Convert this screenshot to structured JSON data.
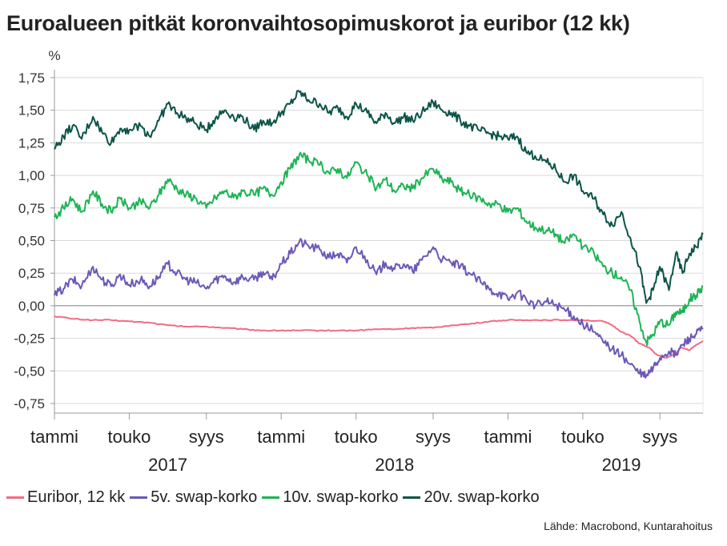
{
  "chart_data": {
    "type": "line",
    "title": "Euroalueen pitkät koronvaihtosopimuskorot ja euribor (12 kk)",
    "ylabel": "%",
    "ylim": [
      -0.75,
      1.75
    ],
    "yticks": [
      1.75,
      1.5,
      1.25,
      1.0,
      0.75,
      0.5,
      0.25,
      0.0,
      -0.25,
      -0.5,
      -0.75
    ],
    "ytick_labels": [
      "1,75",
      "1,50",
      "1,25",
      "1,00",
      "0,75",
      "0,50",
      "0,25",
      "0,00",
      "-0,25",
      "-0,50",
      "-0,75"
    ],
    "xlim": [
      2017.0,
      2019.86
    ],
    "xticks": [
      {
        "x": 2017.0,
        "label": "tammi"
      },
      {
        "x": 2017.33,
        "label": "touko"
      },
      {
        "x": 2017.67,
        "label": "syys"
      },
      {
        "x": 2018.0,
        "label": "tammi"
      },
      {
        "x": 2018.33,
        "label": "touko"
      },
      {
        "x": 2018.67,
        "label": "syys"
      },
      {
        "x": 2019.0,
        "label": "tammi"
      },
      {
        "x": 2019.33,
        "label": "touko"
      },
      {
        "x": 2019.67,
        "label": "syys"
      }
    ],
    "year_labels": [
      {
        "x": 2017.5,
        "label": "2017"
      },
      {
        "x": 2018.5,
        "label": "2018"
      },
      {
        "x": 2019.5,
        "label": "2019"
      }
    ],
    "grid": true,
    "legend_position": "bottom-left",
    "series": [
      {
        "name": "Euribor, 12 kk",
        "color": "#f06c84",
        "points": [
          [
            2017.0,
            -0.08
          ],
          [
            2017.08,
            -0.1
          ],
          [
            2017.17,
            -0.11
          ],
          [
            2017.25,
            -0.11
          ],
          [
            2017.33,
            -0.12
          ],
          [
            2017.42,
            -0.13
          ],
          [
            2017.5,
            -0.15
          ],
          [
            2017.58,
            -0.16
          ],
          [
            2017.67,
            -0.16
          ],
          [
            2017.75,
            -0.17
          ],
          [
            2017.83,
            -0.18
          ],
          [
            2017.92,
            -0.19
          ],
          [
            2018.0,
            -0.19
          ],
          [
            2018.08,
            -0.19
          ],
          [
            2018.17,
            -0.19
          ],
          [
            2018.25,
            -0.19
          ],
          [
            2018.33,
            -0.19
          ],
          [
            2018.42,
            -0.18
          ],
          [
            2018.5,
            -0.18
          ],
          [
            2018.58,
            -0.17
          ],
          [
            2018.67,
            -0.17
          ],
          [
            2018.75,
            -0.15
          ],
          [
            2018.83,
            -0.14
          ],
          [
            2018.92,
            -0.12
          ],
          [
            2019.0,
            -0.11
          ],
          [
            2019.08,
            -0.11
          ],
          [
            2019.17,
            -0.11
          ],
          [
            2019.25,
            -0.11
          ],
          [
            2019.33,
            -0.11
          ],
          [
            2019.42,
            -0.12
          ],
          [
            2019.46,
            -0.15
          ],
          [
            2019.5,
            -0.2
          ],
          [
            2019.54,
            -0.23
          ],
          [
            2019.58,
            -0.29
          ],
          [
            2019.62,
            -0.32
          ],
          [
            2019.66,
            -0.38
          ],
          [
            2019.7,
            -0.4
          ],
          [
            2019.74,
            -0.37
          ],
          [
            2019.76,
            -0.32
          ],
          [
            2019.8,
            -0.34
          ],
          [
            2019.83,
            -0.3
          ],
          [
            2019.86,
            -0.27
          ]
        ]
      },
      {
        "name": "5v. swap-korko",
        "color": "#6b58b8",
        "points": [
          [
            2017.0,
            0.08
          ],
          [
            2017.04,
            0.13
          ],
          [
            2017.08,
            0.2
          ],
          [
            2017.12,
            0.15
          ],
          [
            2017.17,
            0.3
          ],
          [
            2017.21,
            0.2
          ],
          [
            2017.25,
            0.15
          ],
          [
            2017.29,
            0.24
          ],
          [
            2017.33,
            0.16
          ],
          [
            2017.38,
            0.2
          ],
          [
            2017.42,
            0.15
          ],
          [
            2017.46,
            0.22
          ],
          [
            2017.5,
            0.32
          ],
          [
            2017.54,
            0.25
          ],
          [
            2017.58,
            0.2
          ],
          [
            2017.62,
            0.18
          ],
          [
            2017.67,
            0.13
          ],
          [
            2017.71,
            0.2
          ],
          [
            2017.75,
            0.23
          ],
          [
            2017.79,
            0.18
          ],
          [
            2017.83,
            0.22
          ],
          [
            2017.88,
            0.2
          ],
          [
            2017.92,
            0.26
          ],
          [
            2017.96,
            0.2
          ],
          [
            2018.0,
            0.32
          ],
          [
            2018.04,
            0.4
          ],
          [
            2018.08,
            0.49
          ],
          [
            2018.12,
            0.46
          ],
          [
            2018.17,
            0.43
          ],
          [
            2018.21,
            0.37
          ],
          [
            2018.25,
            0.4
          ],
          [
            2018.29,
            0.33
          ],
          [
            2018.33,
            0.45
          ],
          [
            2018.38,
            0.35
          ],
          [
            2018.42,
            0.24
          ],
          [
            2018.46,
            0.33
          ],
          [
            2018.5,
            0.28
          ],
          [
            2018.54,
            0.32
          ],
          [
            2018.58,
            0.26
          ],
          [
            2018.62,
            0.35
          ],
          [
            2018.67,
            0.45
          ],
          [
            2018.71,
            0.35
          ],
          [
            2018.75,
            0.33
          ],
          [
            2018.79,
            0.3
          ],
          [
            2018.83,
            0.25
          ],
          [
            2018.88,
            0.18
          ],
          [
            2018.92,
            0.12
          ],
          [
            2018.96,
            0.1
          ],
          [
            2019.0,
            0.05
          ],
          [
            2019.04,
            0.1
          ],
          [
            2019.08,
            0.05
          ],
          [
            2019.12,
            0.0
          ],
          [
            2019.17,
            0.03
          ],
          [
            2019.21,
            0.01
          ],
          [
            2019.25,
            -0.03
          ],
          [
            2019.29,
            -0.08
          ],
          [
            2019.33,
            -0.14
          ],
          [
            2019.38,
            -0.2
          ],
          [
            2019.42,
            -0.28
          ],
          [
            2019.46,
            -0.33
          ],
          [
            2019.5,
            -0.38
          ],
          [
            2019.54,
            -0.45
          ],
          [
            2019.58,
            -0.52
          ],
          [
            2019.61,
            -0.54
          ],
          [
            2019.64,
            -0.48
          ],
          [
            2019.67,
            -0.4
          ],
          [
            2019.71,
            -0.35
          ],
          [
            2019.74,
            -0.38
          ],
          [
            2019.77,
            -0.3
          ],
          [
            2019.8,
            -0.25
          ],
          [
            2019.83,
            -0.22
          ],
          [
            2019.86,
            -0.17
          ]
        ]
      },
      {
        "name": "10v. swap-korko",
        "color": "#1db454",
        "points": [
          [
            2017.0,
            0.68
          ],
          [
            2017.04,
            0.75
          ],
          [
            2017.08,
            0.82
          ],
          [
            2017.12,
            0.72
          ],
          [
            2017.17,
            0.88
          ],
          [
            2017.21,
            0.78
          ],
          [
            2017.25,
            0.72
          ],
          [
            2017.29,
            0.82
          ],
          [
            2017.33,
            0.75
          ],
          [
            2017.38,
            0.8
          ],
          [
            2017.42,
            0.75
          ],
          [
            2017.46,
            0.85
          ],
          [
            2017.5,
            0.97
          ],
          [
            2017.54,
            0.9
          ],
          [
            2017.58,
            0.85
          ],
          [
            2017.62,
            0.83
          ],
          [
            2017.67,
            0.75
          ],
          [
            2017.71,
            0.83
          ],
          [
            2017.75,
            0.88
          ],
          [
            2017.79,
            0.83
          ],
          [
            2017.83,
            0.88
          ],
          [
            2017.88,
            0.85
          ],
          [
            2017.92,
            0.9
          ],
          [
            2017.96,
            0.85
          ],
          [
            2018.0,
            0.95
          ],
          [
            2018.04,
            1.05
          ],
          [
            2018.08,
            1.16
          ],
          [
            2018.12,
            1.12
          ],
          [
            2018.17,
            1.08
          ],
          [
            2018.21,
            1.02
          ],
          [
            2018.25,
            1.05
          ],
          [
            2018.29,
            0.98
          ],
          [
            2018.33,
            1.1
          ],
          [
            2018.38,
            1.0
          ],
          [
            2018.42,
            0.9
          ],
          [
            2018.46,
            0.97
          ],
          [
            2018.5,
            0.88
          ],
          [
            2018.54,
            0.92
          ],
          [
            2018.58,
            0.9
          ],
          [
            2018.62,
            0.98
          ],
          [
            2018.67,
            1.05
          ],
          [
            2018.71,
            0.97
          ],
          [
            2018.75,
            0.95
          ],
          [
            2018.79,
            0.88
          ],
          [
            2018.83,
            0.85
          ],
          [
            2018.88,
            0.82
          ],
          [
            2018.92,
            0.78
          ],
          [
            2018.96,
            0.78
          ],
          [
            2019.0,
            0.72
          ],
          [
            2019.04,
            0.75
          ],
          [
            2019.08,
            0.65
          ],
          [
            2019.12,
            0.6
          ],
          [
            2019.17,
            0.58
          ],
          [
            2019.21,
            0.55
          ],
          [
            2019.25,
            0.48
          ],
          [
            2019.29,
            0.55
          ],
          [
            2019.33,
            0.45
          ],
          [
            2019.38,
            0.4
          ],
          [
            2019.42,
            0.3
          ],
          [
            2019.46,
            0.25
          ],
          [
            2019.5,
            0.22
          ],
          [
            2019.54,
            0.12
          ],
          [
            2019.58,
            -0.12
          ],
          [
            2019.61,
            -0.28
          ],
          [
            2019.64,
            -0.22
          ],
          [
            2019.67,
            -0.12
          ],
          [
            2019.71,
            -0.15
          ],
          [
            2019.74,
            -0.05
          ],
          [
            2019.77,
            -0.05
          ],
          [
            2019.8,
            0.05
          ],
          [
            2019.83,
            0.08
          ],
          [
            2019.86,
            0.15
          ]
        ]
      },
      {
        "name": "20v. swap-korko",
        "color": "#0c5447",
        "points": [
          [
            2017.0,
            1.2
          ],
          [
            2017.04,
            1.3
          ],
          [
            2017.08,
            1.38
          ],
          [
            2017.12,
            1.28
          ],
          [
            2017.17,
            1.45
          ],
          [
            2017.21,
            1.33
          ],
          [
            2017.25,
            1.25
          ],
          [
            2017.29,
            1.36
          ],
          [
            2017.33,
            1.35
          ],
          [
            2017.38,
            1.38
          ],
          [
            2017.42,
            1.3
          ],
          [
            2017.46,
            1.42
          ],
          [
            2017.5,
            1.55
          ],
          [
            2017.54,
            1.48
          ],
          [
            2017.58,
            1.44
          ],
          [
            2017.62,
            1.4
          ],
          [
            2017.67,
            1.35
          ],
          [
            2017.71,
            1.44
          ],
          [
            2017.75,
            1.5
          ],
          [
            2017.79,
            1.45
          ],
          [
            2017.83,
            1.45
          ],
          [
            2017.88,
            1.35
          ],
          [
            2017.92,
            1.42
          ],
          [
            2017.96,
            1.4
          ],
          [
            2018.0,
            1.48
          ],
          [
            2018.04,
            1.55
          ],
          [
            2018.08,
            1.64
          ],
          [
            2018.12,
            1.58
          ],
          [
            2018.17,
            1.55
          ],
          [
            2018.21,
            1.48
          ],
          [
            2018.25,
            1.52
          ],
          [
            2018.29,
            1.45
          ],
          [
            2018.33,
            1.55
          ],
          [
            2018.38,
            1.48
          ],
          [
            2018.42,
            1.4
          ],
          [
            2018.46,
            1.48
          ],
          [
            2018.5,
            1.4
          ],
          [
            2018.54,
            1.45
          ],
          [
            2018.58,
            1.42
          ],
          [
            2018.62,
            1.48
          ],
          [
            2018.67,
            1.56
          ],
          [
            2018.71,
            1.5
          ],
          [
            2018.75,
            1.48
          ],
          [
            2018.79,
            1.42
          ],
          [
            2018.83,
            1.38
          ],
          [
            2018.88,
            1.34
          ],
          [
            2018.92,
            1.32
          ],
          [
            2018.96,
            1.3
          ],
          [
            2019.0,
            1.28
          ],
          [
            2019.04,
            1.3
          ],
          [
            2019.08,
            1.18
          ],
          [
            2019.12,
            1.15
          ],
          [
            2019.17,
            1.1
          ],
          [
            2019.21,
            1.05
          ],
          [
            2019.25,
            0.95
          ],
          [
            2019.29,
            1.0
          ],
          [
            2019.33,
            0.88
          ],
          [
            2019.38,
            0.82
          ],
          [
            2019.42,
            0.7
          ],
          [
            2019.46,
            0.62
          ],
          [
            2019.5,
            0.72
          ],
          [
            2019.54,
            0.52
          ],
          [
            2019.58,
            0.3
          ],
          [
            2019.61,
            0.02
          ],
          [
            2019.64,
            0.12
          ],
          [
            2019.67,
            0.3
          ],
          [
            2019.71,
            0.12
          ],
          [
            2019.74,
            0.4
          ],
          [
            2019.77,
            0.25
          ],
          [
            2019.8,
            0.4
          ],
          [
            2019.83,
            0.45
          ],
          [
            2019.86,
            0.55
          ]
        ]
      }
    ]
  },
  "legend": {
    "items": [
      {
        "label": "Euribor, 12 kk",
        "color": "#f06c84"
      },
      {
        "label": "5v. swap-korko",
        "color": "#6b58b8"
      },
      {
        "label": "10v. swap-korko",
        "color": "#1db454"
      },
      {
        "label": "20v. swap-korko",
        "color": "#0c5447"
      }
    ]
  },
  "source": "Lähde: Macrobond, Kuntarahoitus"
}
